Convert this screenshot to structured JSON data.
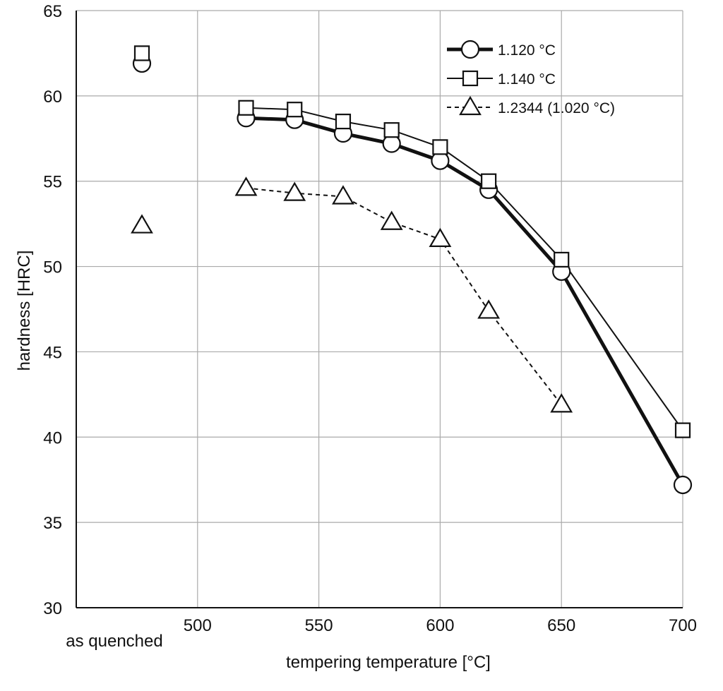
{
  "chart_data": {
    "type": "line",
    "title": "",
    "xlabel": "tempering temperature [°C]",
    "ylabel": "hardness [HRC]",
    "xlim": [
      450,
      700
    ],
    "ylim": [
      30,
      65
    ],
    "xticks": [
      500,
      550,
      600,
      650,
      700
    ],
    "yticks": [
      30,
      35,
      40,
      45,
      50,
      55,
      60,
      65
    ],
    "grid": true,
    "legend_position": "top-right",
    "as_quenched_label": "as quenched",
    "series": [
      {
        "name": "1.120 °C",
        "marker": "circle",
        "line": "thick-solid",
        "as_quenched": 61.9,
        "x": [
          520,
          540,
          560,
          580,
          600,
          620,
          650,
          700
        ],
        "y": [
          58.7,
          58.6,
          57.8,
          57.2,
          56.2,
          54.5,
          49.7,
          37.2
        ]
      },
      {
        "name": "1.140 °C",
        "marker": "square",
        "line": "thin-solid",
        "as_quenched": 62.5,
        "x": [
          520,
          540,
          560,
          580,
          600,
          620,
          650,
          700
        ],
        "y": [
          59.3,
          59.2,
          58.5,
          58.0,
          57.0,
          55.0,
          50.4,
          40.4
        ]
      },
      {
        "name": "1.2344 (1.020 °C)",
        "marker": "triangle",
        "line": "dashed",
        "as_quenched": 52.4,
        "x": [
          520,
          540,
          560,
          580,
          600,
          620,
          650
        ],
        "y": [
          54.6,
          54.3,
          54.1,
          52.6,
          51.6,
          47.4,
          41.9
        ]
      }
    ]
  }
}
